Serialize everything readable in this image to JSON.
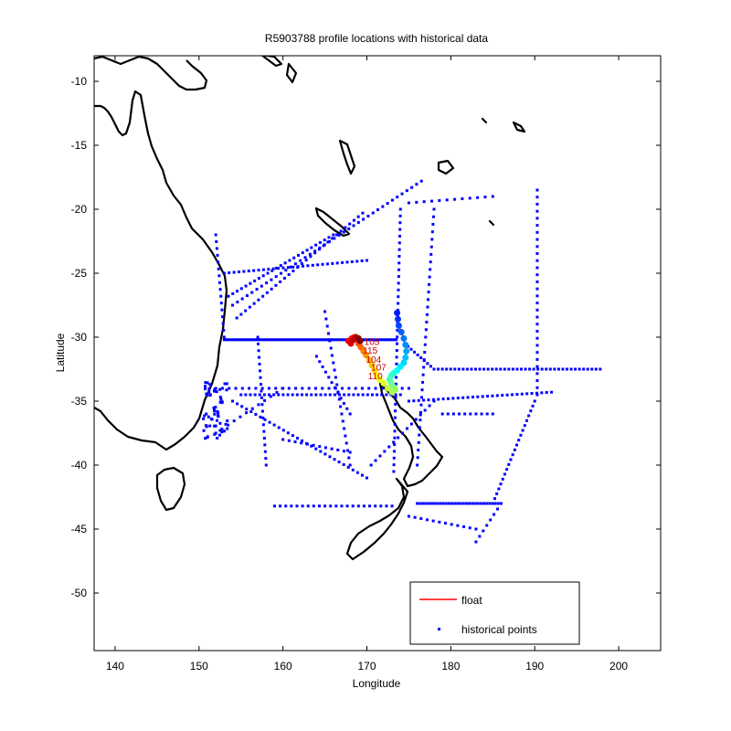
{
  "chart_data": {
    "type": "scatter",
    "title": "R5903788 profile locations with historical data",
    "xlabel": "Longitude",
    "ylabel": "Latitude",
    "xlim": [
      137.5,
      205
    ],
    "ylim": [
      -54.5,
      -8
    ],
    "xticks": [
      140,
      150,
      160,
      170,
      180,
      190,
      200
    ],
    "yticks": [
      -10,
      -15,
      -20,
      -25,
      -30,
      -35,
      -40,
      -45,
      -50
    ],
    "grid": false,
    "legend": {
      "placement": "bottom-right",
      "entries": [
        {
          "label": "float",
          "color": "#ff0000",
          "marker": "line"
        },
        {
          "label": "historical points",
          "color": "#0000ff",
          "marker": "point"
        }
      ]
    },
    "series": [
      {
        "name": "float",
        "color": "#ff0000",
        "marker_colormap": "jet",
        "points": [
          [
            173.6,
            -28.1
          ],
          [
            173.7,
            -28.6
          ],
          [
            173.8,
            -29.1
          ],
          [
            174.1,
            -29.6
          ],
          [
            174.4,
            -30.1
          ],
          [
            174.6,
            -30.6
          ],
          [
            174.7,
            -31.1
          ],
          [
            174.6,
            -31.6
          ],
          [
            174.4,
            -32.0
          ],
          [
            174.0,
            -32.3
          ],
          [
            173.6,
            -32.6
          ],
          [
            173.2,
            -32.8
          ],
          [
            172.9,
            -33.0
          ],
          [
            172.7,
            -33.3
          ],
          [
            172.9,
            -33.6
          ],
          [
            173.2,
            -33.9
          ],
          [
            173.4,
            -34.1
          ],
          [
            173.0,
            -34.3
          ],
          [
            172.5,
            -34.0
          ],
          [
            172.0,
            -33.6
          ],
          [
            171.5,
            -33.3
          ],
          [
            171.2,
            -33.0
          ],
          [
            170.9,
            -32.6
          ],
          [
            170.6,
            -32.2
          ],
          [
            170.3,
            -31.8
          ],
          [
            169.9,
            -31.4
          ],
          [
            169.6,
            -31.1
          ],
          [
            169.3,
            -30.8
          ],
          [
            169.0,
            -30.5
          ],
          [
            168.8,
            -30.2
          ],
          [
            168.5,
            -30.0
          ],
          [
            168.2,
            -30.1
          ],
          [
            167.8,
            -30.3
          ],
          [
            168.1,
            -30.5
          ],
          [
            168.4,
            -30.2
          ],
          [
            168.7,
            -30.0
          ],
          [
            169.0,
            -30.1
          ],
          [
            169.2,
            -30.3
          ]
        ],
        "point_labels": [
          {
            "text": "105",
            "lon": 170.6,
            "lat": -30.6
          },
          {
            "text": "115",
            "lon": 170.4,
            "lat": -31.3
          },
          {
            "text": "104",
            "lon": 170.8,
            "lat": -32.0
          },
          {
            "text": "107",
            "lon": 171.4,
            "lat": -32.6
          },
          {
            "text": "110",
            "lon": 171.0,
            "lat": -33.3
          }
        ]
      },
      {
        "name": "historical points",
        "color": "#0000ff",
        "tracks": [
          {
            "from": [
              153.0,
              -30.2
            ],
            "to": [
              173.5,
              -30.2
            ],
            "n": 90
          },
          {
            "from": [
              153.5,
              -26.8
            ],
            "to": [
              166.0,
              -22.0
            ],
            "n": 25
          },
          {
            "from": [
              154.0,
              -27.5
            ],
            "to": [
              176.5,
              -17.8
            ],
            "n": 40
          },
          {
            "from": [
              154.5,
              -28.5
            ],
            "to": [
              169.5,
              -20.3
            ],
            "n": 30
          },
          {
            "from": [
              153.0,
              -25.0
            ],
            "to": [
              170.0,
              -24.0
            ],
            "n": 30
          },
          {
            "from": [
              154.0,
              -35.0
            ],
            "to": [
              170.0,
              -41.0
            ],
            "n": 30
          },
          {
            "from": [
              155.0,
              -34.5
            ],
            "to": [
              174.0,
              -34.5
            ],
            "n": 35
          },
          {
            "from": [
              152.0,
              -34.0
            ],
            "to": [
              175.0,
              -34.0
            ],
            "n": 30
          },
          {
            "from": [
              157.0,
              -30.0
            ],
            "to": [
              158.0,
              -40.0
            ],
            "n": 20
          },
          {
            "from": [
              165.0,
              -28.0
            ],
            "to": [
              168.0,
              -40.0
            ],
            "n": 22
          },
          {
            "from": [
              174.0,
              -20.0
            ],
            "to": [
              173.2,
              -40.5
            ],
            "n": 40
          },
          {
            "from": [
              178.0,
              -20.0
            ],
            "to": [
              176.0,
              -40.0
            ],
            "n": 35
          },
          {
            "from": [
              190.3,
              -18.5
            ],
            "to": [
              190.3,
              -34.5
            ],
            "n": 30
          },
          {
            "from": [
              190.0,
              -35.0
            ],
            "to": [
              185.0,
              -43.0
            ],
            "n": 22
          },
          {
            "from": [
              178.5,
              -32.5
            ],
            "to": [
              197.8,
              -32.5
            ],
            "n": 40
          },
          {
            "from": [
              174.5,
              -30.5
            ],
            "to": [
              178.0,
              -32.5
            ],
            "n": 10
          },
          {
            "from": [
              176.0,
              -43.0
            ],
            "to": [
              186.0,
              -43.0
            ],
            "n": 30
          },
          {
            "from": [
              186.0,
              -43.0
            ],
            "to": [
              183.0,
              -46.0
            ],
            "n": 8
          },
          {
            "from": [
              175.0,
              -35.0
            ],
            "to": [
              192.0,
              -34.3
            ],
            "n": 30
          },
          {
            "from": [
              179.0,
              -36.0
            ],
            "to": [
              185.0,
              -36.0
            ],
            "n": 10
          },
          {
            "from": [
              170.5,
              -40.0
            ],
            "to": [
              178.0,
              -35.0
            ],
            "n": 15
          },
          {
            "from": [
              164.0,
              -31.5
            ],
            "to": [
              168.0,
              -36.0
            ],
            "n": 12
          },
          {
            "from": [
              159.0,
              -43.2
            ],
            "to": [
              173.0,
              -43.2
            ],
            "n": 22
          },
          {
            "from": [
              152.0,
              -22.0
            ],
            "to": [
              153.0,
              -30.0
            ],
            "n": 16
          },
          {
            "from": [
              175.0,
              -44.0
            ],
            "to": [
              183.0,
              -45.0
            ],
            "n": 12
          },
          {
            "from": [
              160.0,
              -38.0
            ],
            "to": [
              168.0,
              -39.0
            ],
            "n": 12
          },
          {
            "from": [
              175.0,
              -19.5
            ],
            "to": [
              185.0,
              -19.0
            ],
            "n": 12
          },
          {
            "from": [
              160.0,
              -34.0
            ],
            "to": [
              152.0,
              -37.5
            ],
            "n": 12
          }
        ],
        "cluster": {
          "lon": [
            150.5,
            153.5
          ],
          "lat": [
            -38.0,
            -33.5
          ],
          "n": 60
        }
      }
    ]
  },
  "map": {
    "coastline_color": "#000000",
    "landmasses": [
      "Australia",
      "New Zealand North Island",
      "New Zealand South Island",
      "New Caledonia",
      "Tasmania"
    ]
  }
}
